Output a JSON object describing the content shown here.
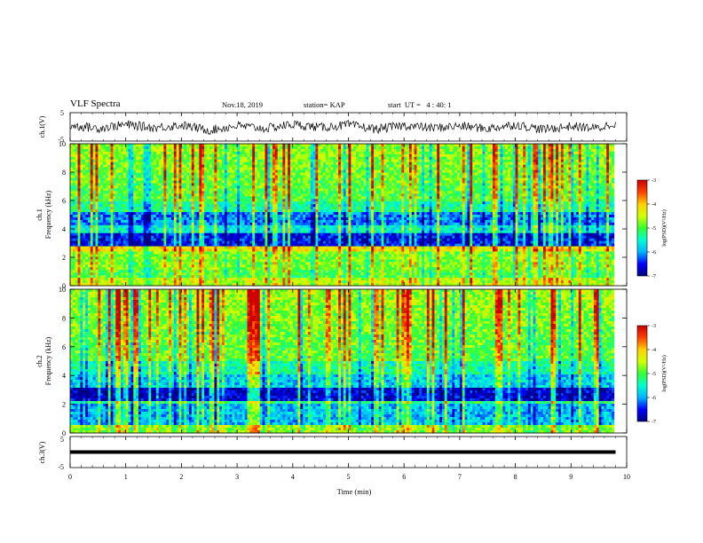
{
  "header": {
    "title": "VLF Spectra",
    "date": "Nov.18, 2019",
    "station": "station= KAP",
    "start_ut": "start  UT =   4 : 40: 1"
  },
  "panels": {
    "ch1_wave_label": "ch.1(V)",
    "ch1_spec_label_line1": "ch.1",
    "ch1_spec_label_line2": "Frequency (kHz)",
    "ch2_spec_label_line1": "ch.2",
    "ch2_spec_label_line2": "Frequency (kHz)",
    "ch3_wave_label": "ch.3(V)",
    "colorbar_label": "log(PSD)(V²/Hz)",
    "x_label": "Time (min)"
  },
  "colors": {
    "colormap": [
      "#00007f",
      "#0000ff",
      "#00b4ff",
      "#00ffd0",
      "#34ff34",
      "#d0ff00",
      "#ffd000",
      "#ff4000",
      "#cc0000"
    ],
    "trace": "#000000"
  },
  "chart_data": [
    {
      "type": "line",
      "title": "VLF Spectra",
      "ylabel": "ch.1(V)",
      "xlim": [
        0,
        10
      ],
      "ylim": [
        -5,
        5
      ],
      "y_ticks": [
        "5",
        "-5"
      ],
      "series": [
        {
          "x": [
            0,
            0.5,
            1,
            1.5,
            2,
            2.5,
            3,
            3.5,
            4,
            4.5,
            5,
            5.5,
            6,
            6.5,
            7,
            7.5,
            8,
            8.5,
            9,
            9.5,
            9.8
          ],
          "y": [
            0.5,
            -0.5,
            0.8,
            -0.3,
            0.6,
            -1.2,
            0.4,
            -0.6,
            0.9,
            -0.2,
            0.7,
            -0.8,
            0.5,
            -0.4,
            0.3,
            -0.6,
            0.8,
            -0.9,
            0.2,
            -0.5,
            1.5
          ]
        }
      ]
    },
    {
      "type": "heatmap",
      "ylabel": "ch.1 Frequency (kHz)",
      "xlim": [
        0,
        10
      ],
      "ylim": [
        0,
        10
      ],
      "y_ticks": [
        "0",
        "2",
        "4",
        "6",
        "8",
        "10"
      ],
      "colorbar": {
        "label": "log(PSD)(V²/Hz)",
        "range": [
          -7,
          -3
        ],
        "ticks": [
          "-3",
          "-4",
          "-5",
          "-6",
          "-7"
        ]
      }
    },
    {
      "type": "heatmap",
      "ylabel": "ch.2 Frequency (kHz)",
      "xlim": [
        0,
        10
      ],
      "ylim": [
        0,
        10
      ],
      "y_ticks": [
        "0",
        "2",
        "4",
        "6",
        "8",
        "10"
      ],
      "colorbar": {
        "label": "log(PSD)(V²/Hz)",
        "range": [
          -7,
          -3
        ],
        "ticks": [
          "-3",
          "-4",
          "-5",
          "-6",
          "-7"
        ]
      }
    },
    {
      "type": "line",
      "ylabel": "ch.3(V)",
      "xlabel": "Time (min)",
      "xlim": [
        0,
        10
      ],
      "ylim": [
        -5,
        5
      ],
      "y_ticks": [
        "5",
        "-5"
      ],
      "x_ticks": [
        "0",
        "1",
        "2",
        "3",
        "4",
        "5",
        "6",
        "7",
        "8",
        "9",
        "10"
      ],
      "series": [
        {
          "x": [
            0,
            9.8
          ],
          "y": [
            0,
            0
          ]
        }
      ]
    }
  ]
}
